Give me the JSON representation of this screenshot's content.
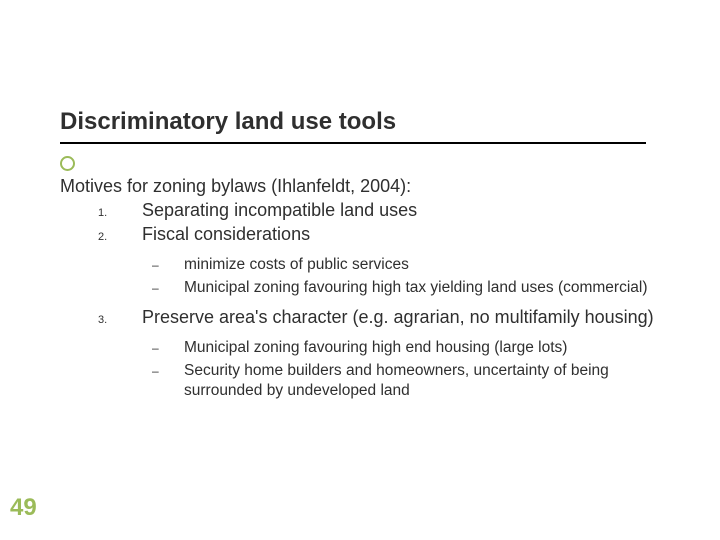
{
  "title": "Discriminatory land use tools",
  "intro": "Motives for zoning bylaws (Ihlanfeldt, 2004):",
  "items": {
    "n1_marker": "1.",
    "n1_text": "Separating incompatible land uses",
    "n2_marker": "2.",
    "n2_text": "Fiscal considerations",
    "s2a": "minimize costs of public services",
    "s2b": "Municipal zoning favouring high tax yielding land uses (commercial)",
    "n3_marker": "3.",
    "n3_text": "Preserve area's character (e.g. agrarian, no multifamily housing)",
    "s3a": "Municipal zoning favouring high end housing (large lots)",
    "s3b": "Security home builders and homeowners, uncertainty of being surrounded by undeveloped land"
  },
  "dash": "–",
  "page_number": "49",
  "colors": {
    "accent": "#9bbb59",
    "text": "#2f2f2f",
    "underline": "#000000",
    "background": "#ffffff"
  },
  "fontsizes": {
    "title": 24,
    "body": 18,
    "sub": 15.5,
    "marker": 11,
    "pagenum": 24
  }
}
